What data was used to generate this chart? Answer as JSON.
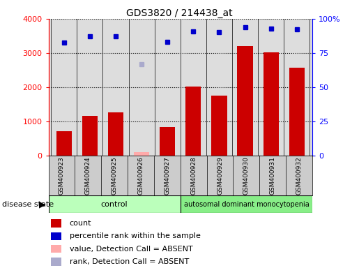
{
  "title": "GDS3820 / 214438_at",
  "samples": [
    "GSM400923",
    "GSM400924",
    "GSM400925",
    "GSM400926",
    "GSM400927",
    "GSM400928",
    "GSM400929",
    "GSM400930",
    "GSM400931",
    "GSM400932"
  ],
  "counts": [
    700,
    1150,
    1270,
    null,
    830,
    2020,
    1750,
    3200,
    3020,
    2570
  ],
  "absent_counts": [
    null,
    null,
    null,
    90,
    null,
    null,
    null,
    null,
    null,
    null
  ],
  "percentile_ranks": [
    82.5,
    87.25,
    87.25,
    null,
    83.25,
    90.5,
    90.0,
    93.75,
    93.0,
    92.5
  ],
  "absent_ranks": [
    null,
    null,
    null,
    66.5,
    null,
    null,
    null,
    null,
    null,
    null
  ],
  "left_ylim": [
    0,
    4000
  ],
  "right_ylim": [
    0,
    100
  ],
  "left_yticks": [
    0,
    1000,
    2000,
    3000,
    4000
  ],
  "right_yticks": [
    0,
    25,
    50,
    75,
    100
  ],
  "right_yticklabels": [
    "0",
    "25",
    "50",
    "75",
    "100%"
  ],
  "bar_color": "#cc0000",
  "absent_bar_color": "#ffaaaa",
  "rank_color": "#0000cc",
  "absent_rank_color": "#aaaacc",
  "control_bg": "#bbffbb",
  "disease_bg": "#88ee88",
  "plot_bg": "#dddddd",
  "cell_bg": "#cccccc",
  "n_control": 5,
  "n_disease": 5,
  "control_label": "control",
  "disease_label": "autosomal dominant monocytopenia",
  "disease_state_label": "disease state",
  "legend_items": [
    {
      "color": "#cc0000",
      "label": "count"
    },
    {
      "color": "#0000cc",
      "label": "percentile rank within the sample"
    },
    {
      "color": "#ffaaaa",
      "label": "value, Detection Call = ABSENT"
    },
    {
      "color": "#aaaacc",
      "label": "rank, Detection Call = ABSENT"
    }
  ]
}
